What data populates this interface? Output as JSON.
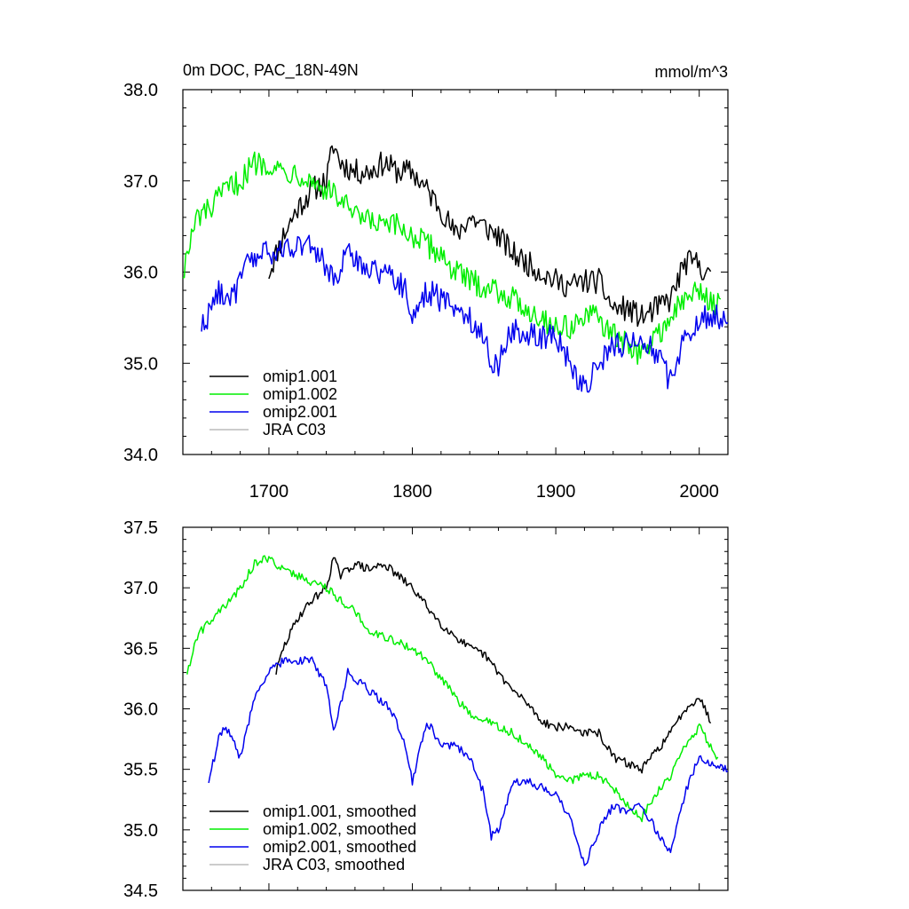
{
  "chart_data": [
    {
      "type": "line",
      "title": "0m DOC, PAC_18N-49N",
      "units": "mmol/m^3",
      "xlim": [
        1640,
        2020
      ],
      "ylim": [
        34.0,
        38.0
      ],
      "x_ticks": [
        1700,
        1800,
        1900,
        2000
      ],
      "y_ticks": [
        34.0,
        35.0,
        36.0,
        37.0,
        38.0
      ],
      "y_tick_labels": [
        "34.0",
        "35.0",
        "36.0",
        "37.0",
        "38.0"
      ],
      "legend_position": "bottom-left",
      "series": [
        {
          "name": "omip1.001",
          "color": "#000000",
          "start": 1700,
          "end": 2008,
          "anchors": [
            [
              1700,
              36.0
            ],
            [
              1710,
              36.4
            ],
            [
              1720,
              36.7
            ],
            [
              1730,
              36.9
            ],
            [
              1740,
              37.0
            ],
            [
              1745,
              37.4
            ],
            [
              1750,
              37.2
            ],
            [
              1760,
              37.1
            ],
            [
              1770,
              37.1
            ],
            [
              1780,
              37.2
            ],
            [
              1790,
              37.1
            ],
            [
              1800,
              37.1
            ],
            [
              1810,
              36.9
            ],
            [
              1820,
              36.7
            ],
            [
              1830,
              36.4
            ],
            [
              1840,
              36.6
            ],
            [
              1850,
              36.5
            ],
            [
              1860,
              36.4
            ],
            [
              1870,
              36.2
            ],
            [
              1880,
              36.1
            ],
            [
              1890,
              36.0
            ],
            [
              1900,
              35.9
            ],
            [
              1910,
              35.85
            ],
            [
              1920,
              35.9
            ],
            [
              1930,
              35.9
            ],
            [
              1940,
              35.6
            ],
            [
              1950,
              35.6
            ],
            [
              1960,
              35.5
            ],
            [
              1970,
              35.6
            ],
            [
              1980,
              35.7
            ],
            [
              1990,
              36.1
            ],
            [
              2000,
              36.1
            ],
            [
              2008,
              35.9
            ]
          ]
        },
        {
          "name": "omip1.002",
          "color": "#00ee00",
          "start": 1640,
          "end": 2015,
          "anchors": [
            [
              1640,
              36.0
            ],
            [
              1645,
              36.3
            ],
            [
              1650,
              36.6
            ],
            [
              1660,
              36.7
            ],
            [
              1670,
              36.9
            ],
            [
              1680,
              37.0
            ],
            [
              1690,
              37.2
            ],
            [
              1700,
              37.2
            ],
            [
              1710,
              37.1
            ],
            [
              1720,
              37.1
            ],
            [
              1730,
              37.0
            ],
            [
              1740,
              36.9
            ],
            [
              1750,
              36.8
            ],
            [
              1760,
              36.6
            ],
            [
              1770,
              36.55
            ],
            [
              1780,
              36.5
            ],
            [
              1790,
              36.5
            ],
            [
              1800,
              36.4
            ],
            [
              1810,
              36.3
            ],
            [
              1820,
              36.2
            ],
            [
              1830,
              36.0
            ],
            [
              1840,
              35.9
            ],
            [
              1850,
              35.85
            ],
            [
              1860,
              35.8
            ],
            [
              1870,
              35.7
            ],
            [
              1880,
              35.6
            ],
            [
              1890,
              35.5
            ],
            [
              1900,
              35.4
            ],
            [
              1910,
              35.4
            ],
            [
              1920,
              35.5
            ],
            [
              1930,
              35.5
            ],
            [
              1940,
              35.3
            ],
            [
              1950,
              35.2
            ],
            [
              1960,
              35.1
            ],
            [
              1970,
              35.3
            ],
            [
              1980,
              35.5
            ],
            [
              1990,
              35.7
            ],
            [
              2000,
              35.8
            ],
            [
              2015,
              35.6
            ]
          ]
        },
        {
          "name": "omip2.001",
          "color": "#0000ee",
          "start": 1653,
          "end": 2020,
          "anchors": [
            [
              1653,
              35.4
            ],
            [
              1660,
              35.6
            ],
            [
              1665,
              35.8
            ],
            [
              1675,
              35.7
            ],
            [
              1685,
              36.1
            ],
            [
              1695,
              36.2
            ],
            [
              1705,
              36.2
            ],
            [
              1715,
              36.3
            ],
            [
              1725,
              36.3
            ],
            [
              1735,
              36.2
            ],
            [
              1745,
              35.9
            ],
            [
              1755,
              36.2
            ],
            [
              1765,
              36.1
            ],
            [
              1775,
              36.0
            ],
            [
              1785,
              36.0
            ],
            [
              1795,
              35.8
            ],
            [
              1800,
              35.5
            ],
            [
              1810,
              35.8
            ],
            [
              1820,
              35.7
            ],
            [
              1830,
              35.6
            ],
            [
              1840,
              35.5
            ],
            [
              1850,
              35.3
            ],
            [
              1855,
              35.0
            ],
            [
              1860,
              35.0
            ],
            [
              1870,
              35.4
            ],
            [
              1880,
              35.3
            ],
            [
              1890,
              35.3
            ],
            [
              1900,
              35.3
            ],
            [
              1910,
              35.0
            ],
            [
              1920,
              34.7
            ],
            [
              1930,
              35.0
            ],
            [
              1940,
              35.2
            ],
            [
              1950,
              35.2
            ],
            [
              1960,
              35.3
            ],
            [
              1970,
              35.1
            ],
            [
              1980,
              34.8
            ],
            [
              1990,
              35.3
            ],
            [
              2000,
              35.5
            ],
            [
              2010,
              35.5
            ],
            [
              2020,
              35.5
            ]
          ]
        },
        {
          "name": "JRA C03",
          "color": "#bbbbbb",
          "start": null,
          "end": null,
          "anchors": []
        }
      ]
    },
    {
      "type": "line",
      "xlim": [
        1640,
        2020
      ],
      "ylim": [
        34.5,
        37.5
      ],
      "x_ticks": [
        1700,
        1800,
        1900,
        2000
      ],
      "y_ticks": [
        34.5,
        35.0,
        35.5,
        36.0,
        36.5,
        37.0,
        37.5
      ],
      "y_tick_labels": [
        "34.5",
        "35.0",
        "35.5",
        "36.0",
        "36.5",
        "37.0",
        "37.5"
      ],
      "legend_position": "bottom-left",
      "series": [
        {
          "name": "omip1.001, smoothed",
          "color": "#000000",
          "start": 1705,
          "end": 2008,
          "anchors": [
            [
              1705,
              36.3
            ],
            [
              1710,
              36.5
            ],
            [
              1720,
              36.75
            ],
            [
              1730,
              36.9
            ],
            [
              1740,
              37.0
            ],
            [
              1745,
              37.25
            ],
            [
              1750,
              37.1
            ],
            [
              1760,
              37.2
            ],
            [
              1770,
              37.15
            ],
            [
              1780,
              37.2
            ],
            [
              1790,
              37.1
            ],
            [
              1800,
              37.0
            ],
            [
              1810,
              36.85
            ],
            [
              1820,
              36.7
            ],
            [
              1830,
              36.6
            ],
            [
              1840,
              36.5
            ],
            [
              1850,
              36.45
            ],
            [
              1860,
              36.3
            ],
            [
              1870,
              36.15
            ],
            [
              1880,
              36.05
            ],
            [
              1890,
              35.9
            ],
            [
              1900,
              35.85
            ],
            [
              1910,
              35.85
            ],
            [
              1920,
              35.8
            ],
            [
              1930,
              35.8
            ],
            [
              1940,
              35.6
            ],
            [
              1950,
              35.55
            ],
            [
              1960,
              35.5
            ],
            [
              1970,
              35.65
            ],
            [
              1980,
              35.8
            ],
            [
              1990,
              36.0
            ],
            [
              2000,
              36.1
            ],
            [
              2008,
              35.9
            ]
          ]
        },
        {
          "name": "omip1.002, smoothed",
          "color": "#00ee00",
          "start": 1643,
          "end": 2013,
          "anchors": [
            [
              1643,
              36.3
            ],
            [
              1650,
              36.6
            ],
            [
              1660,
              36.75
            ],
            [
              1670,
              36.85
            ],
            [
              1680,
              37.0
            ],
            [
              1690,
              37.2
            ],
            [
              1700,
              37.25
            ],
            [
              1710,
              37.15
            ],
            [
              1720,
              37.1
            ],
            [
              1730,
              37.05
            ],
            [
              1740,
              37.0
            ],
            [
              1750,
              36.9
            ],
            [
              1760,
              36.8
            ],
            [
              1770,
              36.65
            ],
            [
              1780,
              36.6
            ],
            [
              1790,
              36.55
            ],
            [
              1800,
              36.5
            ],
            [
              1810,
              36.4
            ],
            [
              1820,
              36.25
            ],
            [
              1830,
              36.1
            ],
            [
              1840,
              35.95
            ],
            [
              1850,
              35.9
            ],
            [
              1860,
              35.85
            ],
            [
              1870,
              35.8
            ],
            [
              1880,
              35.7
            ],
            [
              1890,
              35.6
            ],
            [
              1900,
              35.45
            ],
            [
              1910,
              35.4
            ],
            [
              1920,
              35.45
            ],
            [
              1930,
              35.45
            ],
            [
              1940,
              35.35
            ],
            [
              1950,
              35.2
            ],
            [
              1960,
              35.1
            ],
            [
              1970,
              35.3
            ],
            [
              1980,
              35.45
            ],
            [
              1990,
              35.7
            ],
            [
              2000,
              35.85
            ],
            [
              2013,
              35.6
            ]
          ]
        },
        {
          "name": "omip2.001, smoothed",
          "color": "#0000ee",
          "start": 1658,
          "end": 2020,
          "anchors": [
            [
              1658,
              35.4
            ],
            [
              1665,
              35.75
            ],
            [
              1670,
              35.85
            ],
            [
              1680,
              35.6
            ],
            [
              1690,
              36.1
            ],
            [
              1700,
              36.3
            ],
            [
              1710,
              36.4
            ],
            [
              1720,
              36.4
            ],
            [
              1730,
              36.4
            ],
            [
              1740,
              36.2
            ],
            [
              1745,
              35.8
            ],
            [
              1755,
              36.3
            ],
            [
              1765,
              36.2
            ],
            [
              1775,
              36.1
            ],
            [
              1785,
              36.0
            ],
            [
              1795,
              35.7
            ],
            [
              1800,
              35.4
            ],
            [
              1810,
              35.9
            ],
            [
              1820,
              35.7
            ],
            [
              1830,
              35.7
            ],
            [
              1840,
              35.6
            ],
            [
              1850,
              35.3
            ],
            [
              1855,
              34.95
            ],
            [
              1860,
              35.0
            ],
            [
              1870,
              35.4
            ],
            [
              1880,
              35.4
            ],
            [
              1890,
              35.35
            ],
            [
              1900,
              35.3
            ],
            [
              1910,
              35.1
            ],
            [
              1920,
              34.7
            ],
            [
              1930,
              35.0
            ],
            [
              1940,
              35.2
            ],
            [
              1950,
              35.15
            ],
            [
              1960,
              35.2
            ],
            [
              1970,
              35.0
            ],
            [
              1980,
              34.8
            ],
            [
              1990,
              35.3
            ],
            [
              2000,
              35.6
            ],
            [
              2010,
              35.55
            ],
            [
              2020,
              35.5
            ]
          ]
        },
        {
          "name": "JRA C03, smoothed",
          "color": "#bbbbbb",
          "start": null,
          "end": null,
          "anchors": []
        }
      ]
    }
  ]
}
